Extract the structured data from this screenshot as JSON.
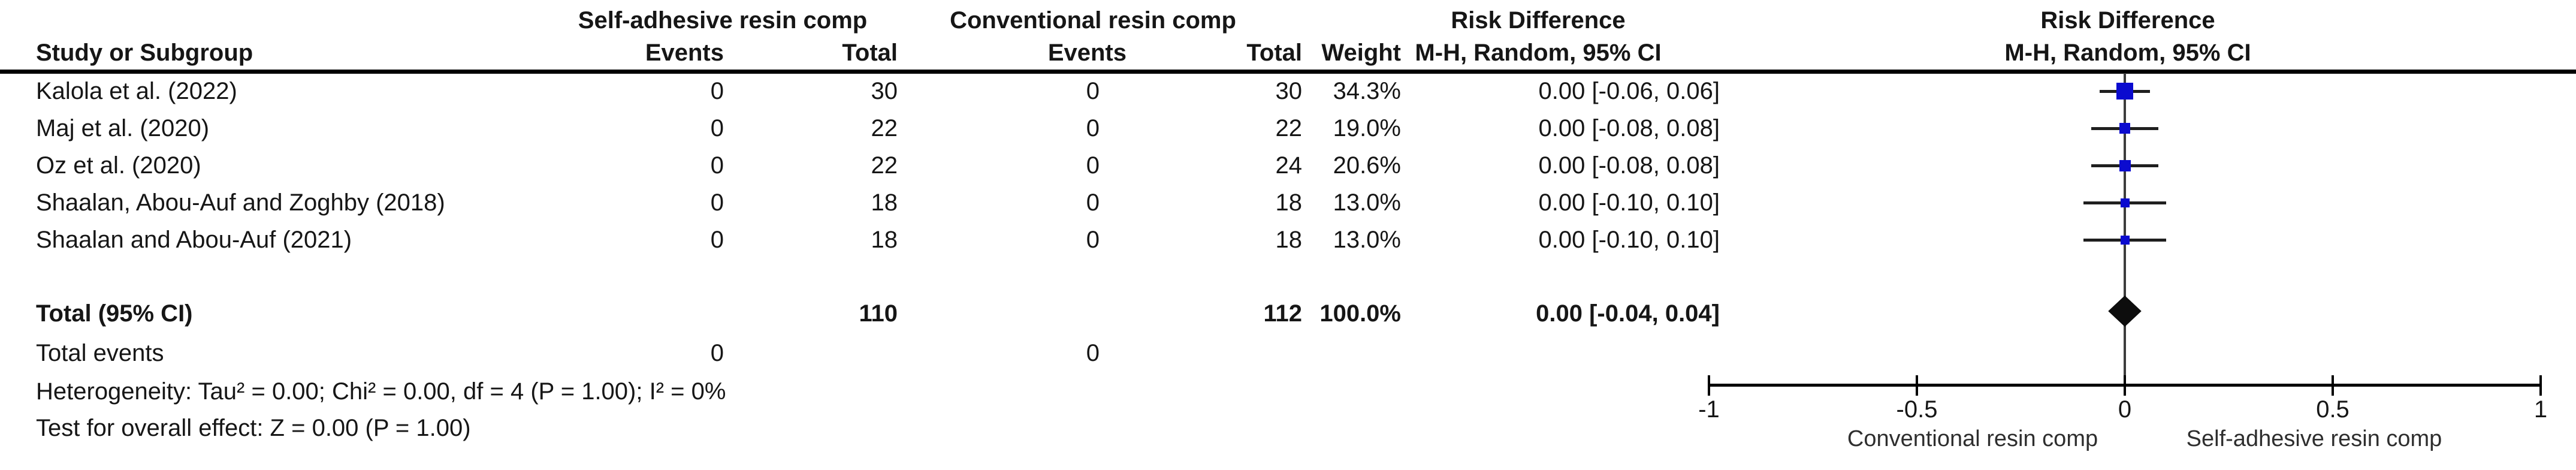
{
  "table": {
    "group1_header": "Self-adhesive resin comp",
    "group2_header": "Conventional resin comp",
    "rd_header_table": "Risk Difference",
    "rd_subheader_table": "M-H, Random, 95% CI",
    "rd_header_plot": "Risk Difference",
    "rd_subheader_plot": "M-H, Random, 95% CI",
    "columns": {
      "study": "Study or Subgroup",
      "events": "Events",
      "total": "Total",
      "weight": "Weight"
    },
    "rows": [
      {
        "study": "Kalola et al. (2022)",
        "events1": "0",
        "total1": "30",
        "events2": "0",
        "total2": "30",
        "weight": "34.3%",
        "ci": "0.00 [-0.06, 0.06]"
      },
      {
        "study": "Maj et al. (2020)",
        "events1": "0",
        "total1": "22",
        "events2": "0",
        "total2": "22",
        "weight": "19.0%",
        "ci": "0.00 [-0.08, 0.08]"
      },
      {
        "study": "Oz et al. (2020)",
        "events1": "0",
        "total1": "22",
        "events2": "0",
        "total2": "24",
        "weight": "20.6%",
        "ci": "0.00 [-0.08, 0.08]"
      },
      {
        "study": "Shaalan, Abou-Auf and Zoghby (2018)",
        "events1": "0",
        "total1": "18",
        "events2": "0",
        "total2": "18",
        "weight": "13.0%",
        "ci": "0.00 [-0.10, 0.10]"
      },
      {
        "study": "Shaalan  and Abou-Auf (2021)",
        "events1": "0",
        "total1": "18",
        "events2": "0",
        "total2": "18",
        "weight": "13.0%",
        "ci": "0.00 [-0.10, 0.10]"
      }
    ],
    "total_row": {
      "label": "Total (95% CI)",
      "total1": "110",
      "total2": "112",
      "weight": "100.0%",
      "ci": "0.00 [-0.04, 0.04]"
    },
    "total_events": {
      "label": "Total events",
      "events1": "0",
      "events2": "0"
    },
    "heterogeneity": "Heterogeneity: Tau² = 0.00; Chi² = 0.00, df = 4 (P = 1.00); I² = 0%",
    "overall_effect": "Test for overall effect: Z = 0.00 (P = 1.00)"
  },
  "chart_data": {
    "type": "forest",
    "title": "Risk Difference",
    "subtitle": "M-H, Random, 95% CI",
    "x_axis": {
      "min": -1,
      "max": 1,
      "ticks": [
        -1,
        -0.5,
        0,
        0.5,
        1
      ],
      "tick_labels": [
        "-1",
        "-0.5",
        "0",
        "0.5",
        "1"
      ],
      "left_label": "Conventional resin comp",
      "right_label": "Self-adhesive resin comp"
    },
    "points": [
      {
        "study": "Kalola et al. (2022)",
        "rd": 0.0,
        "ci_low": -0.06,
        "ci_high": 0.06,
        "weight": 34.3
      },
      {
        "study": "Maj et al. (2020)",
        "rd": 0.0,
        "ci_low": -0.08,
        "ci_high": 0.08,
        "weight": 19.0
      },
      {
        "study": "Oz et al. (2020)",
        "rd": 0.0,
        "ci_low": -0.08,
        "ci_high": 0.08,
        "weight": 20.6
      },
      {
        "study": "Shaalan, Abou-Auf and Zoghby (2018)",
        "rd": 0.0,
        "ci_low": -0.1,
        "ci_high": 0.1,
        "weight": 13.0
      },
      {
        "study": "Shaalan  and Abou-Auf (2021)",
        "rd": 0.0,
        "ci_low": -0.1,
        "ci_high": 0.1,
        "weight": 13.0
      }
    ],
    "total": {
      "rd": 0.0,
      "ci_low": -0.04,
      "ci_high": 0.04
    },
    "marker_color": "#0b0bcf",
    "diamond_color": "#0d0d0d"
  }
}
